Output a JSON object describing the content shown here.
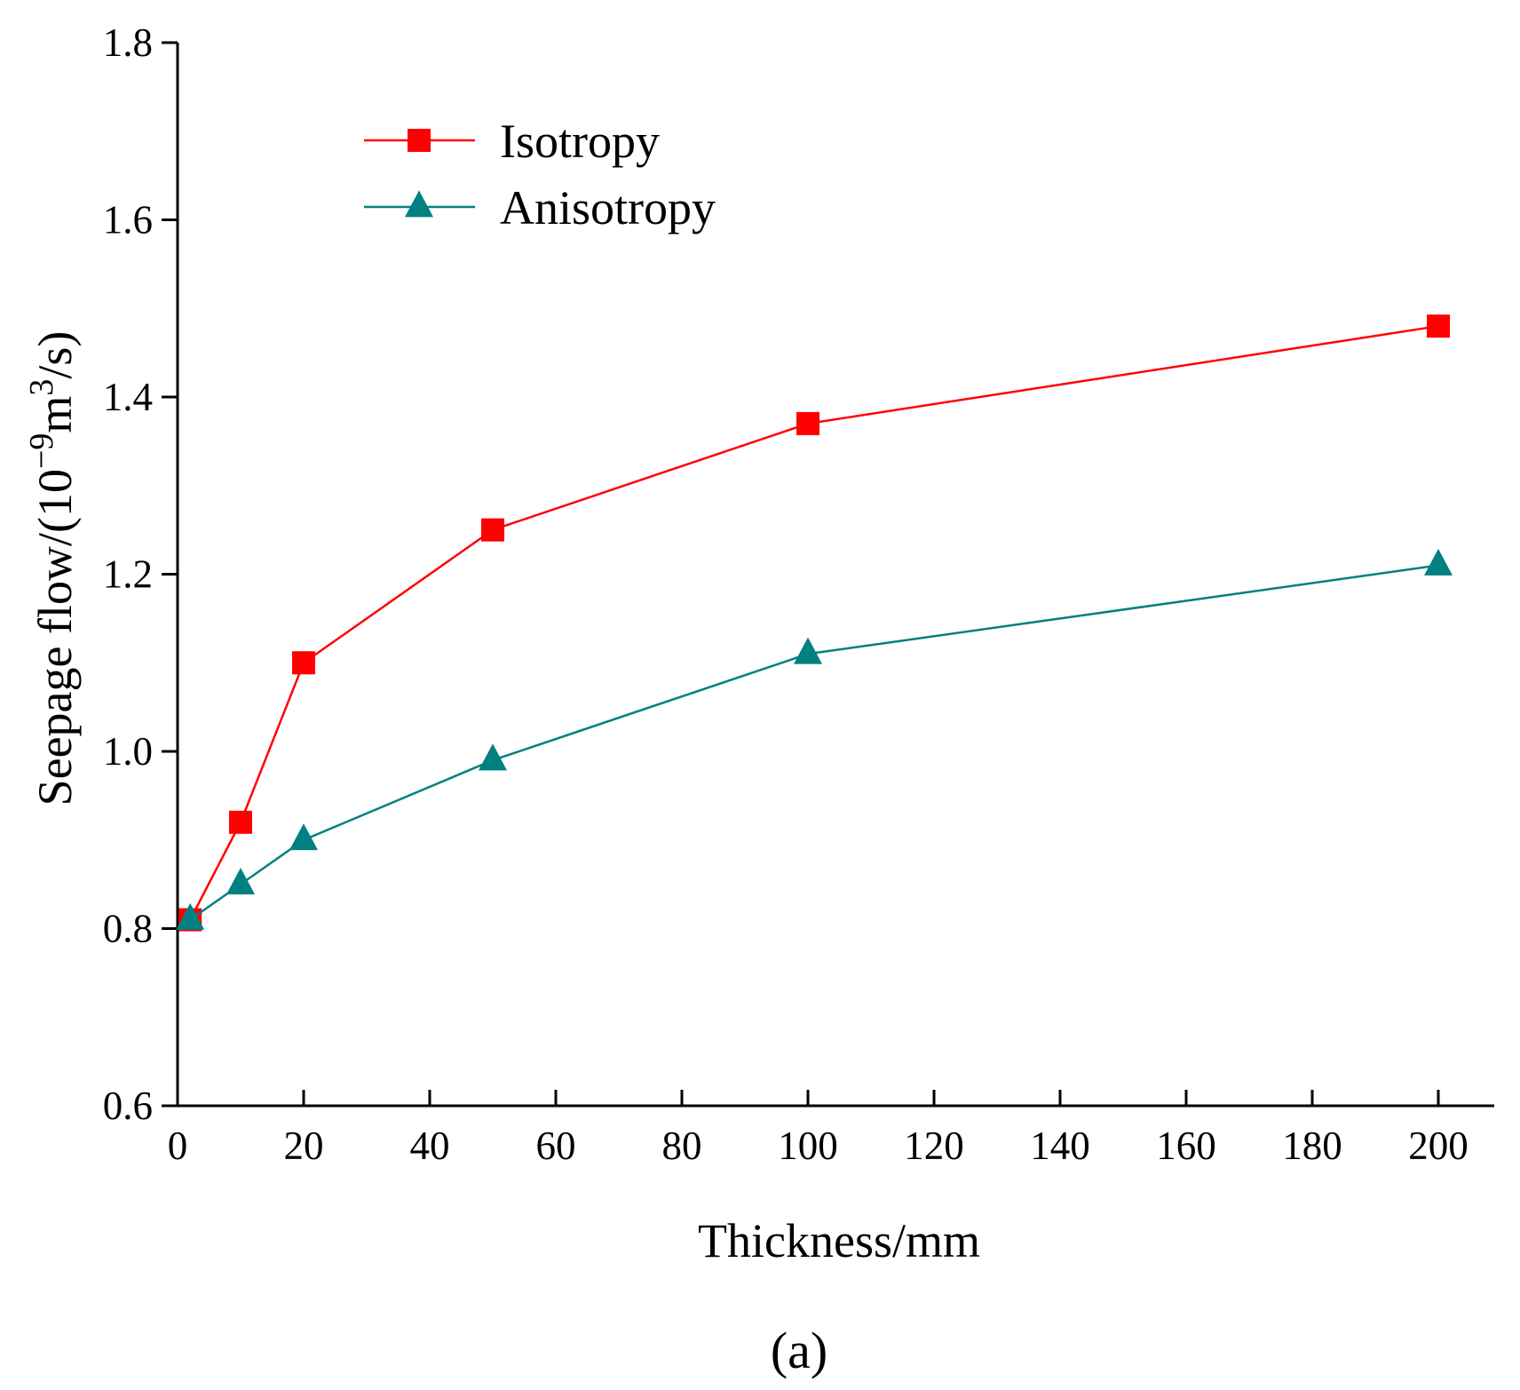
{
  "chart_data": {
    "type": "line",
    "title": "",
    "xlabel": "Thickness/mm",
    "ylabel_main": "Seepage flow/(10",
    "ylabel_exp1": "−9",
    "ylabel_mid": "m",
    "ylabel_exp2": "3",
    "ylabel_end": "/s)",
    "xlim": [
      0,
      210
    ],
    "ylim": [
      0.6,
      1.8
    ],
    "xticks": [
      0,
      20,
      40,
      60,
      80,
      100,
      120,
      140,
      160,
      180,
      200
    ],
    "yticks": [
      0.6,
      0.8,
      1.0,
      1.2,
      1.4,
      1.6,
      1.8
    ],
    "ytick_labels": [
      "0.6",
      "0.8",
      "1.0",
      "1.2",
      "1.4",
      "1.6",
      "1.8"
    ],
    "grid": false,
    "legend_position": "top-left",
    "series": [
      {
        "name": "Isotropy",
        "marker": "square",
        "color": "#ff0000",
        "x": [
          2,
          10,
          20,
          50,
          100,
          200
        ],
        "y": [
          0.81,
          0.92,
          1.1,
          1.25,
          1.37,
          1.48
        ]
      },
      {
        "name": "Anisotropy",
        "marker": "triangle",
        "color": "#008080",
        "x": [
          2,
          10,
          20,
          50,
          100,
          200
        ],
        "y": [
          0.81,
          0.85,
          0.9,
          0.99,
          1.11,
          1.21
        ]
      }
    ]
  },
  "panel_label": "(a)"
}
